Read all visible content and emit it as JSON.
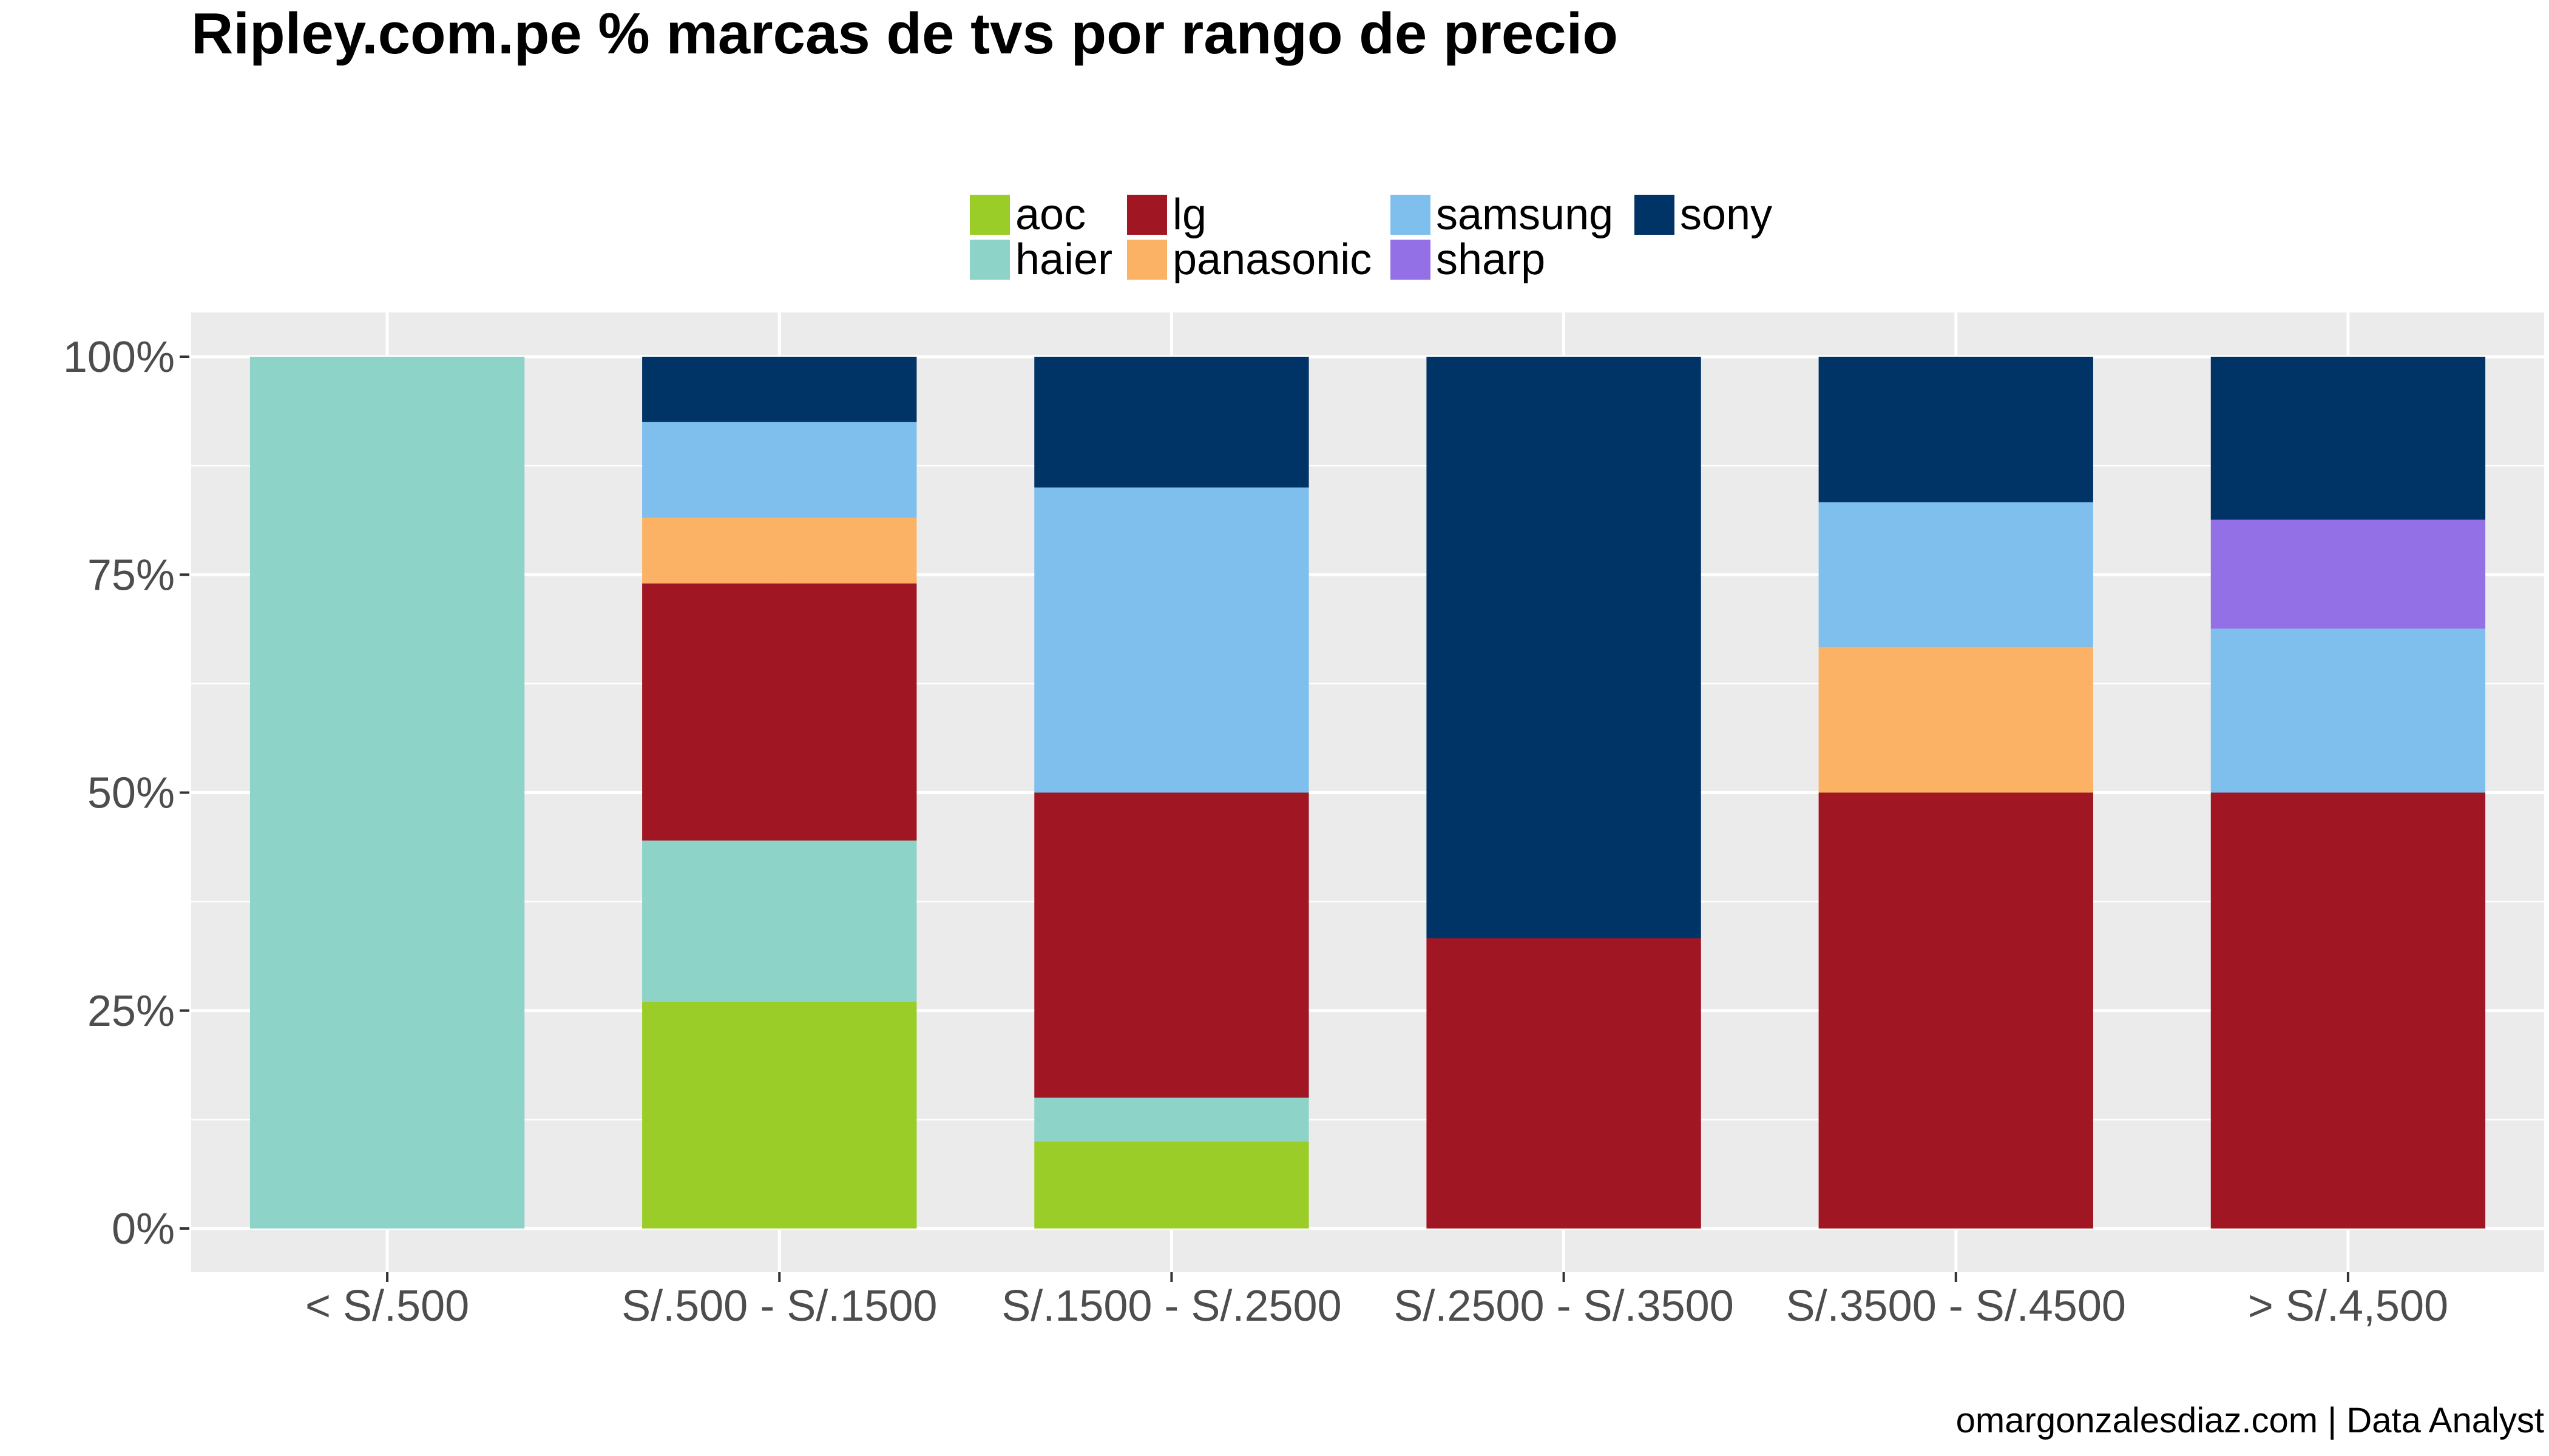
{
  "chart_data": {
    "type": "bar",
    "stacked": true,
    "normalized": true,
    "title": "Ripley.com.pe % marcas de tvs por rango de precio",
    "caption": "omargonzalesdiaz.com | Data Analyst",
    "xlabel": "",
    "ylabel": "",
    "ylim": [
      0,
      1
    ],
    "y_ticks": [
      0,
      0.25,
      0.5,
      0.75,
      1.0
    ],
    "y_tick_labels": [
      "0%",
      "25%",
      "50%",
      "75%",
      "100%"
    ],
    "grid": true,
    "legend_position": "top",
    "categories": [
      "< S/.500",
      "S/.500 - S/.1500",
      "S/.1500 - S/.2500",
      "S/.2500 - S/.3500",
      "S/.3500 - S/.4500",
      "> S/.4,500"
    ],
    "series": [
      {
        "name": "aoc",
        "color": "#9ACD27",
        "values": [
          0,
          0.26,
          0.1,
          0,
          0,
          0
        ]
      },
      {
        "name": "haier",
        "color": "#8ED3C8",
        "values": [
          1.0,
          0.185,
          0.05,
          0,
          0,
          0
        ]
      },
      {
        "name": "lg",
        "color": "#A01622",
        "values": [
          0,
          0.295,
          0.35,
          0.333,
          0.5,
          0.5
        ]
      },
      {
        "name": "panasonic",
        "color": "#FBB265",
        "values": [
          0,
          0.075,
          0,
          0,
          0.167,
          0
        ]
      },
      {
        "name": "samsung",
        "color": "#7FBFEE",
        "values": [
          0,
          0.11,
          0.35,
          0,
          0.166,
          0.188
        ]
      },
      {
        "name": "sharp",
        "color": "#9370E6",
        "values": [
          0,
          0,
          0,
          0,
          0,
          0.125
        ]
      },
      {
        "name": "sony",
        "color": "#003366",
        "values": [
          0,
          0.075,
          0.15,
          0.667,
          0.167,
          0.187
        ]
      }
    ],
    "legend_order": [
      "aoc",
      "lg",
      "samsung",
      "sony",
      "haier",
      "panasonic",
      "sharp"
    ]
  },
  "colors": {
    "panel_background": "#EBEBEB",
    "grid_major": "#FFFFFF",
    "tick_text": "#4d4d4d"
  }
}
